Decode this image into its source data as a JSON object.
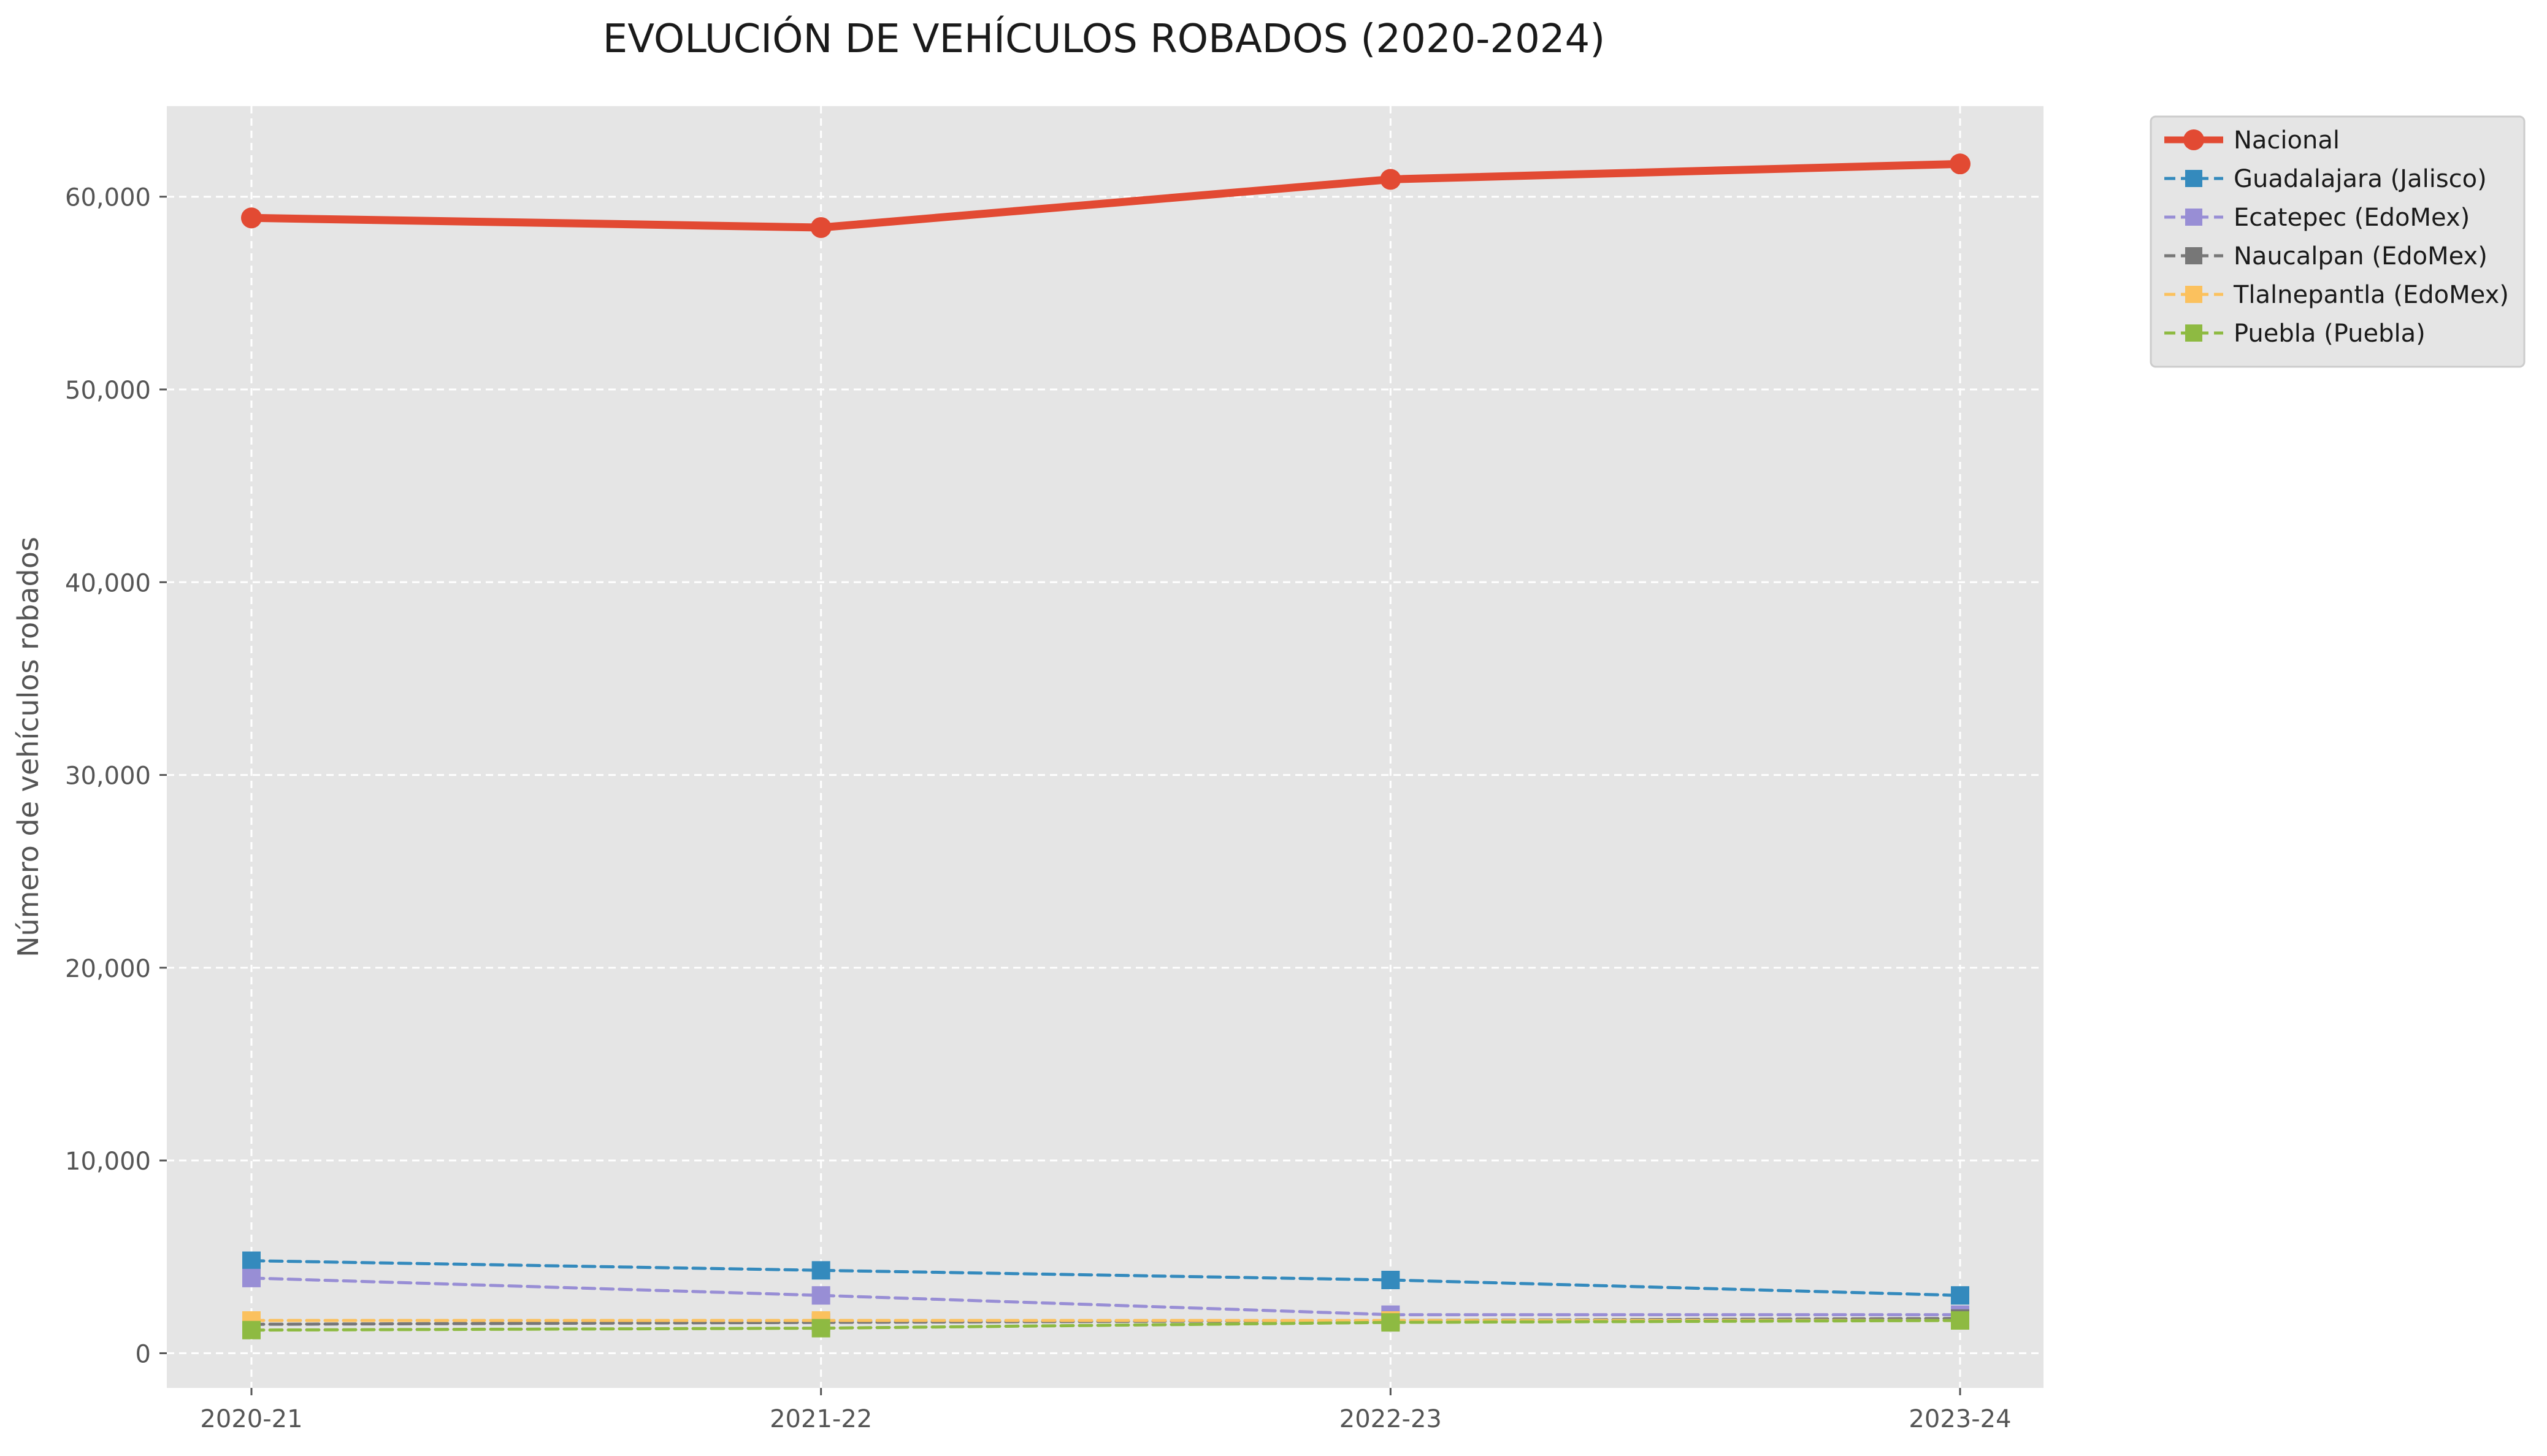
{
  "chart_data": {
    "type": "line",
    "title": "EVOLUCIÓN DE VEHÍCULOS ROBADOS (2020-2024)",
    "xlabel": "",
    "ylabel": "Número de vehículos robados",
    "categories": [
      "2020-21",
      "2021-22",
      "2022-23",
      "2023-24"
    ],
    "ylim": [
      -1800,
      64700
    ],
    "yticks": [
      0,
      10000,
      20000,
      30000,
      40000,
      50000,
      60000
    ],
    "ytick_labels": [
      "0",
      "10,000",
      "20,000",
      "30,000",
      "40,000",
      "50,000",
      "60,000"
    ],
    "grid": true,
    "legend_position": "outside-top-right",
    "plot_background": "#e5e5e5",
    "series": [
      {
        "name": "Nacional",
        "values": [
          58900,
          58400,
          60900,
          61700
        ],
        "color": "#e24a33",
        "style": "solid",
        "marker": "circle"
      },
      {
        "name": "Guadalajara (Jalisco)",
        "values": [
          4800,
          4300,
          3800,
          3000
        ],
        "color": "#348abd",
        "style": "dashed",
        "marker": "square"
      },
      {
        "name": "Ecatepec (EdoMex)",
        "values": [
          3900,
          3000,
          2000,
          2000
        ],
        "color": "#988ed5",
        "style": "dashed",
        "marker": "square"
      },
      {
        "name": "Naucalpan (EdoMex)",
        "values": [
          1500,
          1600,
          1700,
          1800
        ],
        "color": "#777777",
        "style": "dashed",
        "marker": "square"
      },
      {
        "name": "Tlalnepantla (EdoMex)",
        "values": [
          1700,
          1700,
          1700,
          1700
        ],
        "color": "#fbc15e",
        "style": "dashed",
        "marker": "square"
      },
      {
        "name": "Puebla (Puebla)",
        "values": [
          1200,
          1300,
          1600,
          1700
        ],
        "color": "#8eba42",
        "style": "dashed",
        "marker": "square"
      }
    ]
  }
}
